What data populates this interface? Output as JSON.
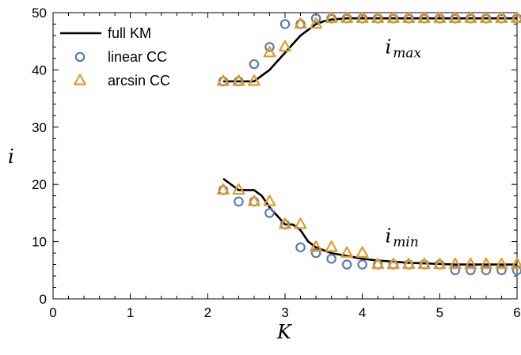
{
  "chart_data": {
    "type": "line",
    "xlabel": "K",
    "ylabel": "i",
    "xlim": [
      0,
      6
    ],
    "ylim": [
      0,
      50
    ],
    "x_ticks": [
      0,
      1,
      2,
      3,
      4,
      5,
      6
    ],
    "y_ticks": [
      0,
      10,
      20,
      30,
      40,
      50
    ],
    "legend_placement": "top-left",
    "annotations": [
      {
        "main": "i",
        "sub": "max",
        "x": 4.5,
        "y": 44
      },
      {
        "main": "i",
        "sub": "min",
        "x": 4.5,
        "y": 11
      }
    ],
    "colors": {
      "full_km": "#000000",
      "linear_cc": "#5B7DB1",
      "arcsin_cc": "#E19C24"
    },
    "series": [
      {
        "name": "full KM",
        "style": "line",
        "groups": [
          {
            "x": [
              2.2,
              2.4,
              2.6,
              2.7,
              2.8,
              2.9,
              3.0,
              3.1,
              3.2,
              3.3,
              3.4,
              3.5,
              3.6,
              3.8,
              4.0,
              4.2,
              4.4,
              4.6,
              4.8,
              5.0,
              5.2,
              5.4,
              5.6,
              5.8,
              6.0
            ],
            "y": [
              38,
              38,
              38,
              39,
              40,
              41.5,
              43,
              44.5,
              46,
              47,
              48,
              48.5,
              48.8,
              49,
              49,
              49,
              49,
              49,
              49,
              49,
              49,
              49,
              49,
              49,
              49
            ]
          },
          {
            "x": [
              2.2,
              2.4,
              2.6,
              2.7,
              2.8,
              2.9,
              3.0,
              3.1,
              3.2,
              3.3,
              3.4,
              3.5,
              3.6,
              3.8,
              4.0,
              4.2,
              4.4,
              4.6,
              4.8,
              5.0,
              5.2,
              5.4,
              5.6,
              5.8,
              6.0
            ],
            "y": [
              21,
              19,
              19,
              18,
              16,
              14.5,
              13,
              13,
              12,
              10,
              9,
              8.5,
              8,
              7.5,
              7,
              6.7,
              6.5,
              6.3,
              6.2,
              6.1,
              6,
              6,
              6,
              6,
              6
            ]
          }
        ]
      },
      {
        "name": "linear CC",
        "style": "circle",
        "points": [
          [
            2.2,
            38
          ],
          [
            2.4,
            38
          ],
          [
            2.6,
            41
          ],
          [
            2.8,
            44
          ],
          [
            3.0,
            48
          ],
          [
            3.2,
            48
          ],
          [
            3.4,
            49
          ],
          [
            3.6,
            49
          ],
          [
            3.8,
            49
          ],
          [
            4.0,
            49
          ],
          [
            4.2,
            49
          ],
          [
            4.4,
            49
          ],
          [
            4.6,
            49
          ],
          [
            4.8,
            49
          ],
          [
            5.0,
            49
          ],
          [
            5.2,
            49
          ],
          [
            5.4,
            49
          ],
          [
            5.6,
            49
          ],
          [
            5.8,
            49
          ],
          [
            6.0,
            49
          ],
          [
            2.2,
            19
          ],
          [
            2.4,
            17
          ],
          [
            2.6,
            17
          ],
          [
            2.8,
            15
          ],
          [
            3.0,
            13
          ],
          [
            3.2,
            9
          ],
          [
            3.4,
            8
          ],
          [
            3.6,
            7
          ],
          [
            3.8,
            6
          ],
          [
            4.0,
            6
          ],
          [
            4.2,
            6
          ],
          [
            4.4,
            6
          ],
          [
            4.6,
            6
          ],
          [
            4.8,
            6
          ],
          [
            5.0,
            6
          ],
          [
            5.2,
            5
          ],
          [
            5.4,
            5
          ],
          [
            5.6,
            5
          ],
          [
            5.8,
            5
          ],
          [
            6.0,
            5
          ]
        ]
      },
      {
        "name": "arcsin CC",
        "style": "triangle",
        "points": [
          [
            2.2,
            38
          ],
          [
            2.4,
            38
          ],
          [
            2.6,
            38
          ],
          [
            2.8,
            43
          ],
          [
            3.0,
            44
          ],
          [
            3.2,
            48
          ],
          [
            3.4,
            48
          ],
          [
            3.6,
            49
          ],
          [
            3.8,
            49
          ],
          [
            4.0,
            49
          ],
          [
            4.2,
            49
          ],
          [
            4.4,
            49
          ],
          [
            4.6,
            49
          ],
          [
            4.8,
            49
          ],
          [
            5.0,
            49
          ],
          [
            5.2,
            49
          ],
          [
            5.4,
            49
          ],
          [
            5.6,
            49
          ],
          [
            5.8,
            49
          ],
          [
            6.0,
            49
          ],
          [
            2.2,
            19
          ],
          [
            2.4,
            19
          ],
          [
            2.6,
            17
          ],
          [
            2.8,
            17
          ],
          [
            3.0,
            13
          ],
          [
            3.2,
            13
          ],
          [
            3.4,
            9
          ],
          [
            3.6,
            9
          ],
          [
            3.8,
            8
          ],
          [
            4.0,
            8
          ],
          [
            4.2,
            6
          ],
          [
            4.4,
            6
          ],
          [
            4.6,
            6
          ],
          [
            4.8,
            6
          ],
          [
            5.0,
            6
          ],
          [
            5.2,
            6
          ],
          [
            5.4,
            6
          ],
          [
            5.6,
            6
          ],
          [
            5.8,
            6
          ],
          [
            6.0,
            6
          ]
        ]
      }
    ]
  }
}
